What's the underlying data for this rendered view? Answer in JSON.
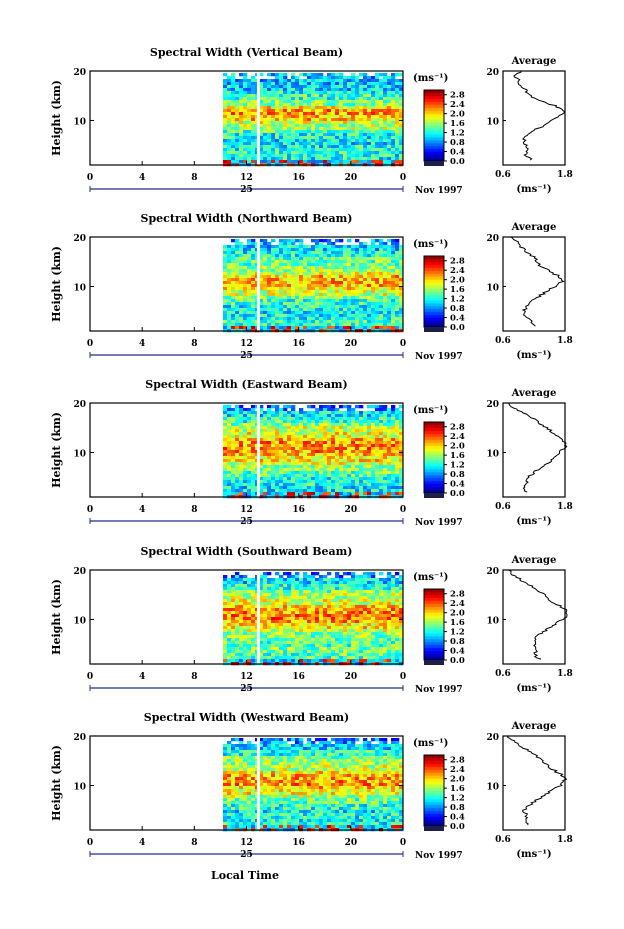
{
  "figure": {
    "x_axis_label": "Local Time",
    "date_label": "Nov 1997",
    "day_label": "25",
    "average_title": "Average",
    "unit_label": "(ms⁻¹)"
  },
  "chart_data": [
    {
      "type": "heatmap",
      "title": "Spectral Width (Vertical Beam)",
      "ylabel": "Height (km)",
      "xlabel": "",
      "x_ticks": [
        "0",
        "4",
        "8",
        "12",
        "16",
        "20",
        "0"
      ],
      "xlim": [
        0,
        24
      ],
      "y_ticks": [
        "10",
        "20"
      ],
      "ylim": [
        1,
        20
      ],
      "data_start_hour": 10.2,
      "colorbar": {
        "label": "(ms⁻¹)",
        "ticks": [
          "0.0",
          "0.4",
          "0.8",
          "1.2",
          "1.6",
          "2.0",
          "2.4",
          "2.8"
        ],
        "range": [
          0,
          3.0
        ]
      },
      "average_profile": {
        "title": "Average",
        "xlabel": "(ms⁻¹)",
        "x_ticks": [
          "0.6",
          "1.8"
        ],
        "xlim": [
          0.6,
          1.8
        ],
        "y_ticks": [
          "10",
          "20"
        ],
        "ylim": [
          1,
          20
        ],
        "height": [
          2,
          3,
          4,
          5,
          6,
          7,
          8,
          9,
          10,
          11,
          12,
          13,
          14,
          15,
          16,
          17,
          18,
          19,
          20
        ],
        "width": [
          1.15,
          1.05,
          1.1,
          1.05,
          1.0,
          1.05,
          1.2,
          1.4,
          1.5,
          1.7,
          1.8,
          1.6,
          1.3,
          1.15,
          1.05,
          0.95,
          0.9,
          0.85,
          0.95
        ]
      }
    },
    {
      "type": "heatmap",
      "title": "Spectral Width (Northward Beam)",
      "ylabel": "Height (km)",
      "xlabel": "",
      "x_ticks": [
        "0",
        "4",
        "8",
        "12",
        "16",
        "20",
        "0"
      ],
      "xlim": [
        0,
        24
      ],
      "y_ticks": [
        "10",
        "20"
      ],
      "ylim": [
        1,
        20
      ],
      "data_start_hour": 10.2,
      "colorbar": {
        "label": "(ms⁻¹)",
        "ticks": [
          "0.0",
          "0.4",
          "0.8",
          "1.2",
          "1.6",
          "2.0",
          "2.4",
          "2.8"
        ],
        "range": [
          0,
          3.0
        ]
      },
      "average_profile": {
        "title": "Average",
        "xlabel": "(ms⁻¹)",
        "x_ticks": [
          "0.6",
          "1.8"
        ],
        "xlim": [
          0.6,
          1.8
        ],
        "y_ticks": [
          "10",
          "20"
        ],
        "ylim": [
          1,
          20
        ],
        "height": [
          2,
          3,
          4,
          5,
          6,
          7,
          8,
          9,
          10,
          11,
          12,
          13,
          14,
          15,
          16,
          17,
          18,
          19,
          20
        ],
        "width": [
          1.25,
          1.15,
          1.05,
          1.0,
          1.05,
          1.15,
          1.3,
          1.45,
          1.6,
          1.75,
          1.7,
          1.5,
          1.35,
          1.25,
          1.2,
          1.05,
          0.95,
          0.9,
          0.75
        ]
      }
    },
    {
      "type": "heatmap",
      "title": "Spectral Width (Eastward Beam)",
      "ylabel": "Height (km)",
      "xlabel": "",
      "x_ticks": [
        "0",
        "4",
        "8",
        "12",
        "16",
        "20",
        "0"
      ],
      "xlim": [
        0,
        24
      ],
      "y_ticks": [
        "10",
        "20"
      ],
      "ylim": [
        1,
        20
      ],
      "data_start_hour": 10.2,
      "colorbar": {
        "label": "(ms⁻¹)",
        "ticks": [
          "0.0",
          "0.4",
          "0.8",
          "1.2",
          "1.6",
          "2.0",
          "2.4",
          "2.8"
        ],
        "range": [
          0,
          3.0
        ]
      },
      "average_profile": {
        "title": "Average",
        "xlabel": "(ms⁻¹)",
        "x_ticks": [
          "0.6",
          "1.8"
        ],
        "xlim": [
          0.6,
          1.8
        ],
        "y_ticks": [
          "10",
          "20"
        ],
        "ylim": [
          1,
          20
        ],
        "height": [
          2,
          3,
          4,
          5,
          6,
          7,
          8,
          9,
          10,
          11,
          12,
          13,
          14,
          15,
          16,
          17,
          18,
          19,
          20
        ],
        "width": [
          1.05,
          1.0,
          1.05,
          1.1,
          1.2,
          1.35,
          1.5,
          1.6,
          1.7,
          1.8,
          1.8,
          1.7,
          1.55,
          1.45,
          1.3,
          1.15,
          1.0,
          0.8,
          0.7
        ]
      }
    },
    {
      "type": "heatmap",
      "title": "Spectral Width (Southward Beam)",
      "ylabel": "Height (km)",
      "xlabel": "",
      "x_ticks": [
        "0",
        "4",
        "8",
        "12",
        "16",
        "20",
        "0"
      ],
      "xlim": [
        0,
        24
      ],
      "y_ticks": [
        "10",
        "20"
      ],
      "ylim": [
        1,
        20
      ],
      "data_start_hour": 10.2,
      "colorbar": {
        "label": "(ms⁻¹)",
        "ticks": [
          "0.0",
          "0.4",
          "0.8",
          "1.2",
          "1.6",
          "2.0",
          "2.4",
          "2.8"
        ],
        "range": [
          0,
          3.0
        ]
      },
      "average_profile": {
        "title": "Average",
        "xlabel": "(ms⁻¹)",
        "x_ticks": [
          "0.6",
          "1.8"
        ],
        "xlim": [
          0.6,
          1.8
        ],
        "y_ticks": [
          "10",
          "20"
        ],
        "ylim": [
          1,
          20
        ],
        "height": [
          2,
          3,
          4,
          5,
          6,
          7,
          8,
          9,
          10,
          11,
          12,
          13,
          14,
          15,
          16,
          17,
          18,
          19,
          20
        ],
        "width": [
          1.3,
          1.2,
          1.25,
          1.2,
          1.2,
          1.3,
          1.45,
          1.6,
          1.75,
          1.85,
          1.8,
          1.65,
          1.5,
          1.4,
          1.25,
          1.1,
          0.95,
          0.8,
          0.7
        ]
      }
    },
    {
      "type": "heatmap",
      "title": "Spectral Width (Westward Beam)",
      "ylabel": "Height (km)",
      "xlabel": "",
      "x_ticks": [
        "0",
        "4",
        "8",
        "12",
        "16",
        "20",
        "0"
      ],
      "xlim": [
        0,
        24
      ],
      "y_ticks": [
        "10",
        "20"
      ],
      "ylim": [
        1,
        20
      ],
      "data_start_hour": 10.2,
      "colorbar": {
        "label": "(ms⁻¹)",
        "ticks": [
          "0.0",
          "0.4",
          "0.8",
          "1.2",
          "1.6",
          "2.0",
          "2.4",
          "2.8"
        ],
        "range": [
          0,
          3.0
        ]
      },
      "average_profile": {
        "title": "Average",
        "xlabel": "(ms⁻¹)",
        "x_ticks": [
          "0.6",
          "1.8"
        ],
        "xlim": [
          0.6,
          1.8
        ],
        "y_ticks": [
          "10",
          "20"
        ],
        "ylim": [
          1,
          20
        ],
        "height": [
          2,
          3,
          4,
          5,
          6,
          7,
          8,
          9,
          10,
          11,
          12,
          13,
          14,
          15,
          16,
          17,
          18,
          19,
          20
        ],
        "width": [
          1.1,
          1.05,
          1.05,
          1.0,
          1.1,
          1.25,
          1.4,
          1.55,
          1.7,
          1.8,
          1.75,
          1.6,
          1.45,
          1.35,
          1.25,
          1.1,
          0.95,
          0.8,
          0.7
        ]
      }
    }
  ]
}
